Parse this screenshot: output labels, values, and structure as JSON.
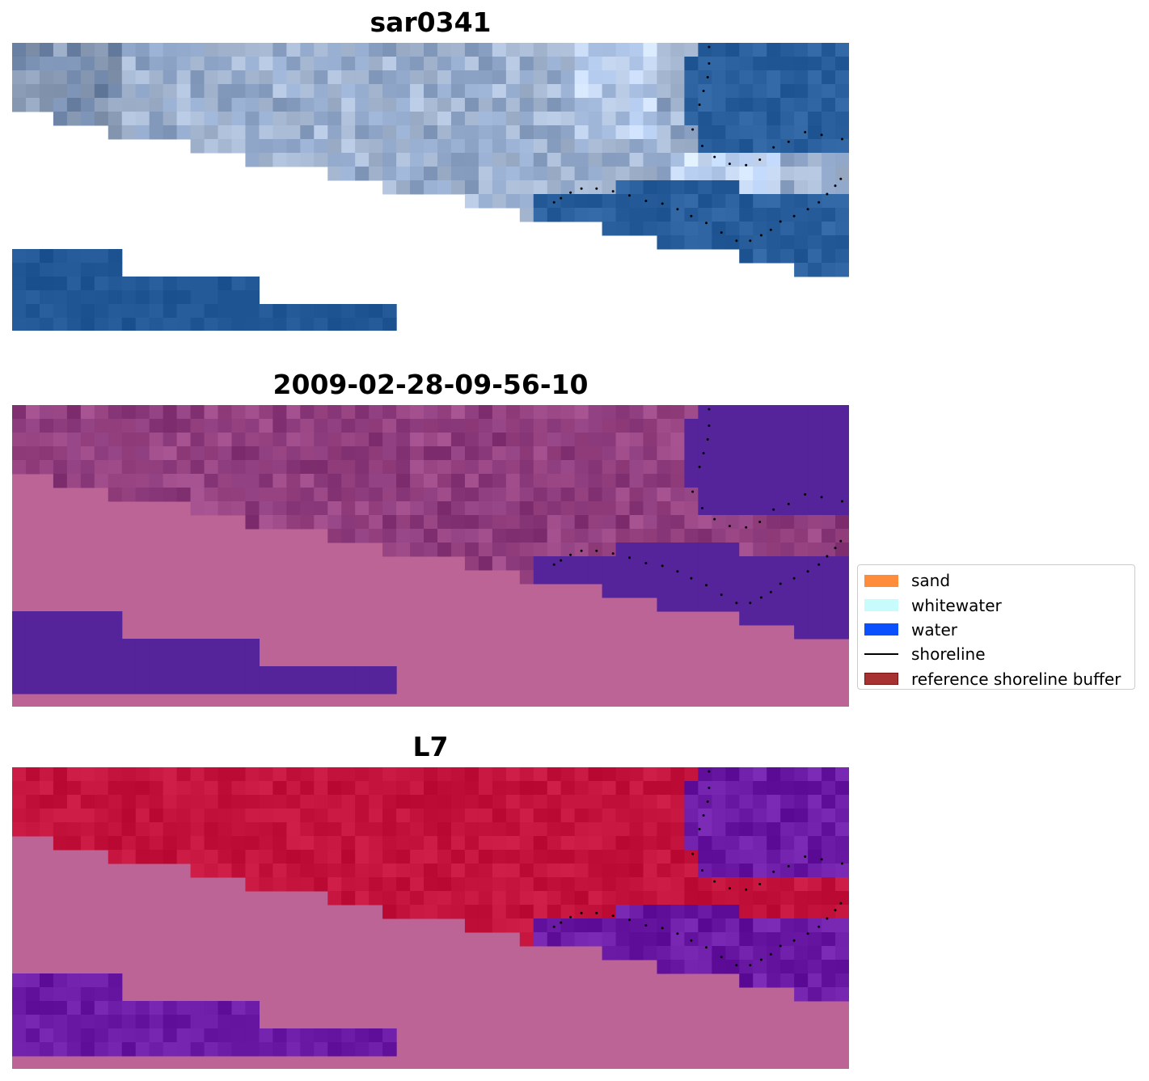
{
  "panels": [
    {
      "title": "sar0341"
    },
    {
      "title": "2009-02-28-09-56-10"
    },
    {
      "title": "L7"
    }
  ],
  "legend": [
    {
      "label": "sand",
      "kind": "patch",
      "color": "#ff8c3a"
    },
    {
      "label": "whitewater",
      "kind": "patch",
      "color": "#c8fcfc"
    },
    {
      "label": "water",
      "kind": "patch",
      "color": "#0a50ff"
    },
    {
      "label": "shoreline",
      "kind": "line",
      "color": "#000000"
    },
    {
      "label": "reference shoreline buffer",
      "kind": "patch",
      "color": "#a83232",
      "edge": "#7a1414"
    }
  ],
  "colors": {
    "nodata_mask": "#bd6496",
    "water_class_purple": "#55239a",
    "rgb_water": "#2a5f9e",
    "ndwi_land": "#c4133c",
    "ndwi_water": "#6b1aa5"
  }
}
